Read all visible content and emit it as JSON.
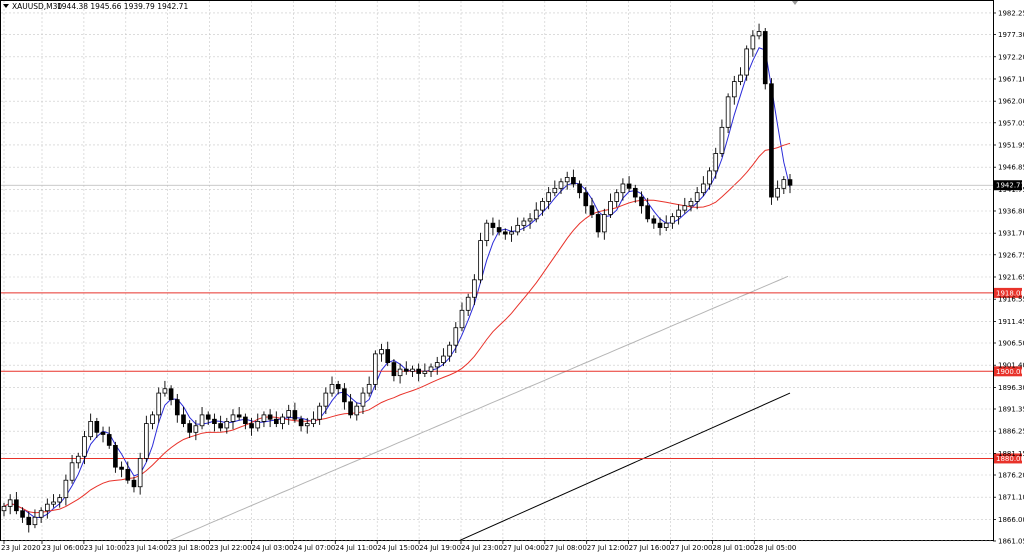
{
  "header": {
    "symbol": "XAUUSD,M30",
    "ohlc": "1944.38 1945.66 1939.79 1942.71"
  },
  "current_price_label": "1942.71",
  "levels": [
    {
      "label": "1918.00",
      "value": 1918.0
    },
    {
      "label": "1900.00",
      "value": 1900.0
    },
    {
      "label": "1880.00",
      "value": 1880.0
    }
  ],
  "colors": {
    "up_candle": "#ffffff",
    "down_candle": "#000000",
    "candle_outline": "#000000",
    "ma_fast": "#2b2bd9",
    "ma_mid": "#e8322a",
    "ma_slow": "#b4b4b4",
    "ma_long": "#000000",
    "level_line": "#e8322a",
    "price_line": "#b8b8b8",
    "grid": "#c8c8c8"
  },
  "chart_data": {
    "type": "candlestick",
    "title": "XAUUSD,M30",
    "ylim": [
      1861.05,
      1985.0
    ],
    "grid": true,
    "y_ticks": [
      "1982.25",
      "1977.30",
      "1972.20",
      "1967.10",
      "1962.00",
      "1957.05",
      "1951.95",
      "1946.85",
      "1941.75",
      "1936.80",
      "1931.70",
      "1926.75",
      "1921.65",
      "1916.55",
      "1911.45",
      "1906.50",
      "1901.40",
      "1896.30",
      "1891.35",
      "1886.25",
      "1881.15",
      "1876.20",
      "1871.10",
      "1866.00",
      "1861.05"
    ],
    "x_ticks": [
      "23 Jul 2020",
      "23 Jul 06:00",
      "23 Jul 10:00",
      "23 Jul 14:00",
      "23 Jul 18:00",
      "23 Jul 22:00",
      "24 Jul 03:00",
      "24 Jul 07:00",
      "24 Jul 11:00",
      "24 Jul 15:00",
      "24 Jul 19:00",
      "24 Jul 23:00",
      "27 Jul 04:00",
      "27 Jul 08:00",
      "27 Jul 12:00",
      "27 Jul 16:00",
      "27 Jul 20:00",
      "28 Jul 01:00",
      "28 Jul 05:00"
    ],
    "closes": [
      1869.0,
      1870.5,
      1868.0,
      1866.5,
      1864.8,
      1866.5,
      1868.0,
      1869.5,
      1870.0,
      1871.0,
      1875.0,
      1879.0,
      1880.5,
      1885.0,
      1888.5,
      1886.0,
      1885.5,
      1883.0,
      1878.0,
      1877.5,
      1875.0,
      1873.5,
      1880.0,
      1888.0,
      1890.0,
      1895.0,
      1896.0,
      1893.5,
      1890.0,
      1888.0,
      1886.0,
      1887.5,
      1890.0,
      1889.0,
      1888.0,
      1887.0,
      1888.5,
      1890.0,
      1889.5,
      1888.0,
      1887.0,
      1888.5,
      1890.0,
      1889.0,
      1888.0,
      1889.5,
      1891.0,
      1889.0,
      1887.5,
      1888.0,
      1889.0,
      1892.0,
      1895.0,
      1897.0,
      1896.0,
      1893.0,
      1890.0,
      1892.0,
      1895.0,
      1897.0,
      1904.0,
      1905.0,
      1902.0,
      1899.0,
      1900.5,
      1900.0,
      1900.5,
      1899.5,
      1900.0,
      1901.0,
      1902.0,
      1903.5,
      1906.0,
      1910.0,
      1914.0,
      1917.0,
      1921.0,
      1930.0,
      1934.0,
      1933.0,
      1932.0,
      1931.5,
      1932.0,
      1933.5,
      1934.5,
      1935.0,
      1937.0,
      1939.0,
      1941.0,
      1942.0,
      1943.5,
      1944.5,
      1943.0,
      1941.0,
      1938.0,
      1936.0,
      1932.0,
      1936.0,
      1939.0,
      1941.0,
      1943.0,
      1942.0,
      1940.0,
      1938.0,
      1935.0,
      1934.0,
      1933.0,
      1934.0,
      1935.5,
      1937.0,
      1938.0,
      1939.0,
      1941.0,
      1943.0,
      1946.0,
      1950.0,
      1956.0,
      1963.0,
      1966.5,
      1968.0,
      1974.0,
      1977.0,
      1978.0,
      1966.0,
      1940.0,
      1942.0,
      1944.0,
      1942.71
    ]
  }
}
